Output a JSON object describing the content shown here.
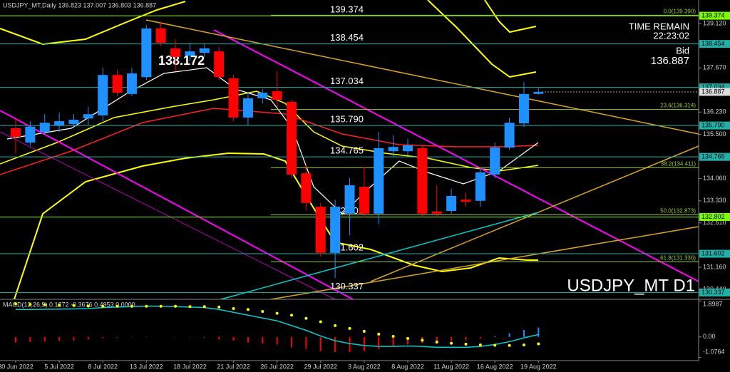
{
  "chart_data": [
    {
      "type": "candlestick",
      "title": "USDJPY_MT D1",
      "header": "USDJPY_MT,Daily 136.823 137.007 136.803 136.887",
      "time_remain_label": "TIME REMAIN",
      "time_remain": "22:23:02",
      "bid_label": "Bid",
      "bid": 136.887,
      "annotation": 138.172,
      "categories": [
        "30 Jun 2022",
        null,
        null,
        "5 Jul 2022",
        null,
        null,
        "8 Jul 2022",
        null,
        null,
        "13 Jul 2022",
        null,
        null,
        "18 Jul 2022",
        null,
        null,
        "21 Jul 2022",
        null,
        null,
        "26 Jul 2022",
        null,
        null,
        "29 Jul 2022",
        null,
        null,
        "3 Aug 2022",
        null,
        null,
        "8 Aug 2022",
        null,
        null,
        "11 Aug 2022",
        null,
        null,
        "16 Aug 2022",
        null,
        null,
        "19 Aug 2022"
      ],
      "open": [
        135.7,
        135.23,
        135.58,
        135.79,
        135.84,
        136.02,
        136.12,
        137.44,
        136.82,
        137.37,
        138.96,
        138.31,
        138.07,
        138.16,
        138.21,
        137.33,
        136.05,
        136.68,
        136.91,
        136.56,
        134.23,
        133.14,
        131.63,
        132.91,
        133.79,
        132.91,
        134.95,
        134.95,
        135.05,
        132.98,
        133.0,
        133.37,
        133.33,
        134.19,
        135.07,
        135.86,
        136.823
      ],
      "high": [
        136.05,
        135.93,
        136.16,
        136.21,
        136.16,
        136.4,
        137.68,
        137.61,
        137.68,
        139.07,
        139.19,
        138.61,
        138.49,
        138.44,
        138.37,
        137.44,
        136.86,
        136.98,
        137.56,
        136.63,
        134.53,
        133.26,
        133.37,
        134.07,
        134.42,
        135.58,
        135.47,
        135.35,
        135.12,
        133.84,
        133.72,
        133.6,
        134.42,
        135.23,
        136.05,
        137.21,
        137.007
      ],
      "low": [
        134.88,
        135.12,
        135.47,
        135.58,
        135.7,
        135.81,
        135.93,
        136.75,
        136.75,
        137.28,
        138.38,
        137.56,
        137.91,
        138.03,
        137.28,
        135.93,
        135.81,
        136.51,
        136.4,
        134.07,
        133.02,
        131.51,
        130.81,
        132.21,
        132.79,
        132.56,
        134.77,
        134.81,
        132.79,
        132.79,
        132.91,
        133.14,
        133.14,
        134.07,
        135.0,
        135.74,
        136.803
      ],
      "close": [
        135.42,
        135.75,
        135.88,
        135.93,
        135.98,
        136.16,
        137.44,
        136.86,
        137.49,
        138.96,
        138.49,
        138.03,
        138.21,
        138.31,
        137.37,
        136.05,
        136.68,
        136.86,
        136.63,
        134.19,
        133.26,
        131.63,
        133.14,
        133.84,
        132.91,
        135.05,
        135.09,
        135.14,
        132.91,
        132.91,
        133.49,
        133.3,
        134.26,
        135.07,
        135.88,
        136.82,
        136.887
      ],
      "up_color": "#1e90ff",
      "down_color": "#ff0000",
      "ylim": [
        130.114,
        139.888
      ],
      "yticks": [
        {
          "value": 139.12,
          "label": "139.120"
        },
        {
          "value": 137.67,
          "label": "137.670"
        },
        {
          "value": 136.23,
          "label": "136.230"
        },
        {
          "value": 135.5,
          "label": "135.500"
        },
        {
          "value": 134.06,
          "label": "134.060"
        },
        {
          "value": 133.33,
          "label": "133.330"
        },
        {
          "value": 132.61,
          "label": "132.610"
        },
        {
          "value": 131.16,
          "label": "131.160"
        },
        {
          "value": 130.44,
          "label": "130.440"
        }
      ],
      "levels": [
        {
          "value": 139.374,
          "label": "139.374",
          "color": "#7cfc00"
        },
        {
          "value": 138.454,
          "label": "138.454",
          "color": "#20b2aa"
        },
        {
          "value": 137.034,
          "label": "137.034",
          "color": "#20b2aa"
        },
        {
          "value": 135.79,
          "label": "135.790",
          "color": "#20b2aa"
        },
        {
          "value": 134.765,
          "label": "134.765",
          "color": "#20b2aa"
        },
        {
          "value": 132.802,
          "label": "132.802",
          "color": "#7cfc00"
        },
        {
          "value": 131.602,
          "label": "131.602",
          "color": "#20b2aa"
        },
        {
          "value": 130.337,
          "label": "130.337",
          "color": "#20b2aa"
        }
      ],
      "fib_color": "#9acd32",
      "fib_levels": [
        {
          "value": 139.39,
          "label": "0.0(139.390)"
        },
        {
          "value": 136.314,
          "label": "23.6(136.314)"
        },
        {
          "value": 134.411,
          "label": "38.2(134.411)"
        },
        {
          "value": 132.873,
          "label": "50.0(132.873)"
        },
        {
          "value": 131.336,
          "label": "61.8(131.336)"
        }
      ]
    },
    {
      "type": "macd",
      "title": "MACD(12,26,9) 0.1272 -0.3676 0.4953 0.0000",
      "ylim": [
        -1.25,
        1.95
      ],
      "yticks": [
        1.8987,
        {
          "value": 0,
          "label": "0.00"
        },
        -1.0764
      ],
      "macd": {
        "color": "#00ced1",
        "values": [
          1.45,
          1.45,
          1.46,
          1.47,
          1.48,
          1.5,
          1.55,
          1.58,
          1.6,
          1.63,
          1.62,
          1.6,
          1.58,
          1.55,
          1.45,
          1.3,
          1.15,
          1.0,
          0.85,
          0.6,
          0.35,
          0.05,
          -0.2,
          -0.35,
          -0.45,
          -0.5,
          -0.5,
          -0.48,
          -0.5,
          -0.55,
          -0.55,
          -0.55,
          -0.5,
          -0.4,
          -0.25,
          -0.05,
          0.1272
        ]
      },
      "signal": {
        "color": "#ffff00",
        "values": [
          1.75,
          1.72,
          1.7,
          1.68,
          1.66,
          1.63,
          1.62,
          1.62,
          1.62,
          1.62,
          1.62,
          1.62,
          1.6,
          1.6,
          1.58,
          1.5,
          1.45,
          1.35,
          1.25,
          1.15,
          0.98,
          0.8,
          0.6,
          0.45,
          0.3,
          0.15,
          0.03,
          -0.08,
          -0.17,
          -0.27,
          -0.33,
          -0.38,
          -0.42,
          -0.44,
          -0.45,
          -0.42,
          -0.3676
        ]
      },
      "histogram": {
        "up_color": "#1e90ff",
        "down_color": "#ff0000",
        "values": [
          -0.3,
          -0.27,
          -0.24,
          -0.21,
          -0.18,
          -0.13,
          -0.07,
          -0.04,
          -0.02,
          0.01,
          0,
          -0.02,
          -0.02,
          -0.05,
          -0.13,
          -0.2,
          -0.3,
          -0.35,
          -0.4,
          -0.55,
          -0.63,
          -0.75,
          -0.8,
          -0.8,
          -0.75,
          -0.65,
          -0.53,
          -0.4,
          -0.33,
          -0.28,
          -0.22,
          -0.17,
          -0.08,
          0.04,
          0.2,
          0.37,
          0.4953
        ]
      }
    }
  ]
}
